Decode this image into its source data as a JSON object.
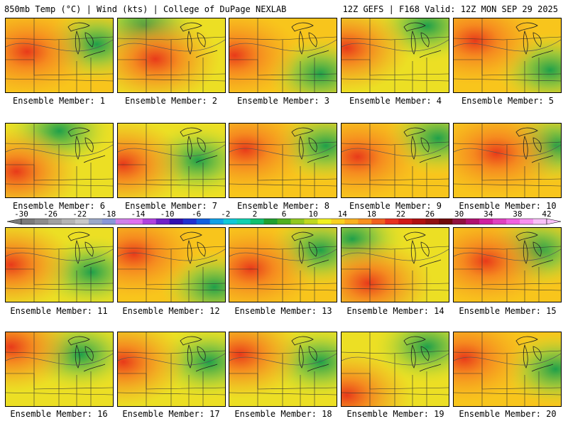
{
  "header": {
    "title_left": "850mb Temp (°C) | Wind (kts) | College of DuPage NEXLAB",
    "title_right": "12Z GEFS | F168 Valid: 12Z MON SEP 29 2025"
  },
  "members": [
    {
      "label": "Ensemble Member: 1",
      "warm": [
        0.2,
        0.45
      ],
      "cool": [
        0.85,
        0.35
      ],
      "tone": 0.55
    },
    {
      "label": "Ensemble Member: 2",
      "warm": [
        0.35,
        0.55
      ],
      "cool": [
        0.25,
        0.1
      ],
      "tone": 0.45
    },
    {
      "label": "Ensemble Member: 3",
      "warm": [
        0.05,
        0.5
      ],
      "cool": [
        0.85,
        0.75
      ],
      "tone": 0.6
    },
    {
      "label": "Ensemble Member: 4",
      "warm": [
        0.05,
        0.4
      ],
      "cool": [
        0.8,
        0.1
      ],
      "tone": 0.45
    },
    {
      "label": "Ensemble Member: 5",
      "warm": [
        0.2,
        0.3
      ],
      "cool": [
        0.9,
        0.7
      ],
      "tone": 0.6
    },
    {
      "label": "Ensemble Member: 6",
      "warm": [
        0.1,
        0.65
      ],
      "cool": [
        0.5,
        0.1
      ],
      "tone": 0.45
    },
    {
      "label": "Ensemble Member: 7",
      "warm": [
        0.05,
        0.55
      ],
      "cool": [
        0.75,
        0.5
      ],
      "tone": 0.5
    },
    {
      "label": "Ensemble Member: 8",
      "warm": [
        0.15,
        0.35
      ],
      "cool": [
        0.9,
        0.3
      ],
      "tone": 0.6
    },
    {
      "label": "Ensemble Member: 9",
      "warm": [
        0.15,
        0.45
      ],
      "cool": [
        0.9,
        0.2
      ],
      "tone": 0.6
    },
    {
      "label": "Ensemble Member: 10",
      "warm": [
        0.4,
        0.4
      ],
      "cool": [
        0.95,
        0.3
      ],
      "tone": 0.58
    },
    {
      "label": "Ensemble Member: 11",
      "warm": [
        0.05,
        0.5
      ],
      "cool": [
        0.8,
        0.6
      ],
      "tone": 0.45
    },
    {
      "label": "Ensemble Member: 12",
      "warm": [
        0.15,
        0.35
      ],
      "cool": [
        0.9,
        0.8
      ],
      "tone": 0.55
    },
    {
      "label": "Ensemble Member: 13",
      "warm": [
        0.2,
        0.55
      ],
      "cool": [
        0.85,
        0.3
      ],
      "tone": 0.55
    },
    {
      "label": "Ensemble Member: 14",
      "warm": [
        0.25,
        0.75
      ],
      "cool": [
        0.1,
        0.15
      ],
      "tone": 0.5
    },
    {
      "label": "Ensemble Member: 15",
      "warm": [
        0.3,
        0.45
      ],
      "cool": [
        0.8,
        0.3
      ],
      "tone": 0.55
    },
    {
      "label": "Ensemble Member: 16",
      "warm": [
        0.05,
        0.2
      ],
      "cool": [
        0.7,
        0.3
      ],
      "tone": 0.4
    },
    {
      "label": "Ensemble Member: 17",
      "warm": [
        0.05,
        0.4
      ],
      "cool": [
        0.85,
        0.4
      ],
      "tone": 0.35
    },
    {
      "label": "Ensemble Member: 18",
      "warm": [
        0.1,
        0.3
      ],
      "cool": [
        0.85,
        0.4
      ],
      "tone": 0.45
    },
    {
      "label": "Ensemble Member: 19",
      "warm": [
        0.05,
        0.85
      ],
      "cool": [
        0.8,
        0.2
      ],
      "tone": 0.35
    },
    {
      "label": "Ensemble Member: 20",
      "warm": [
        0.1,
        0.35
      ],
      "cool": [
        0.95,
        0.5
      ],
      "tone": 0.55
    }
  ],
  "colorbar": {
    "ticks": [
      "-30",
      "-26",
      "-22",
      "-18",
      "-14",
      "-10",
      "-6",
      "-2",
      "2",
      "6",
      "10",
      "14",
      "18",
      "22",
      "26",
      "30",
      "34",
      "38",
      "42"
    ],
    "colors": [
      "#7b7b7b",
      "#8c8c8c",
      "#a0a0a0",
      "#b4b4b4",
      "#c8c8c8",
      "#9aa8c8",
      "#8896d8",
      "#d080e8",
      "#e070f0",
      "#b040e0",
      "#7020c8",
      "#3010b0",
      "#2030d0",
      "#1060e0",
      "#10a0e8",
      "#10c8d8",
      "#10d0b0",
      "#10c070",
      "#20a030",
      "#50b020",
      "#90c820",
      "#c0d820",
      "#f0f020",
      "#f8d020",
      "#f8b020",
      "#f89020",
      "#f06020",
      "#e83020",
      "#d01818",
      "#b01010",
      "#901010",
      "#700808",
      "#901040",
      "#b01070",
      "#d020a0",
      "#e040c0",
      "#f060e0",
      "#f890f0",
      "#f8c0f8"
    ]
  }
}
